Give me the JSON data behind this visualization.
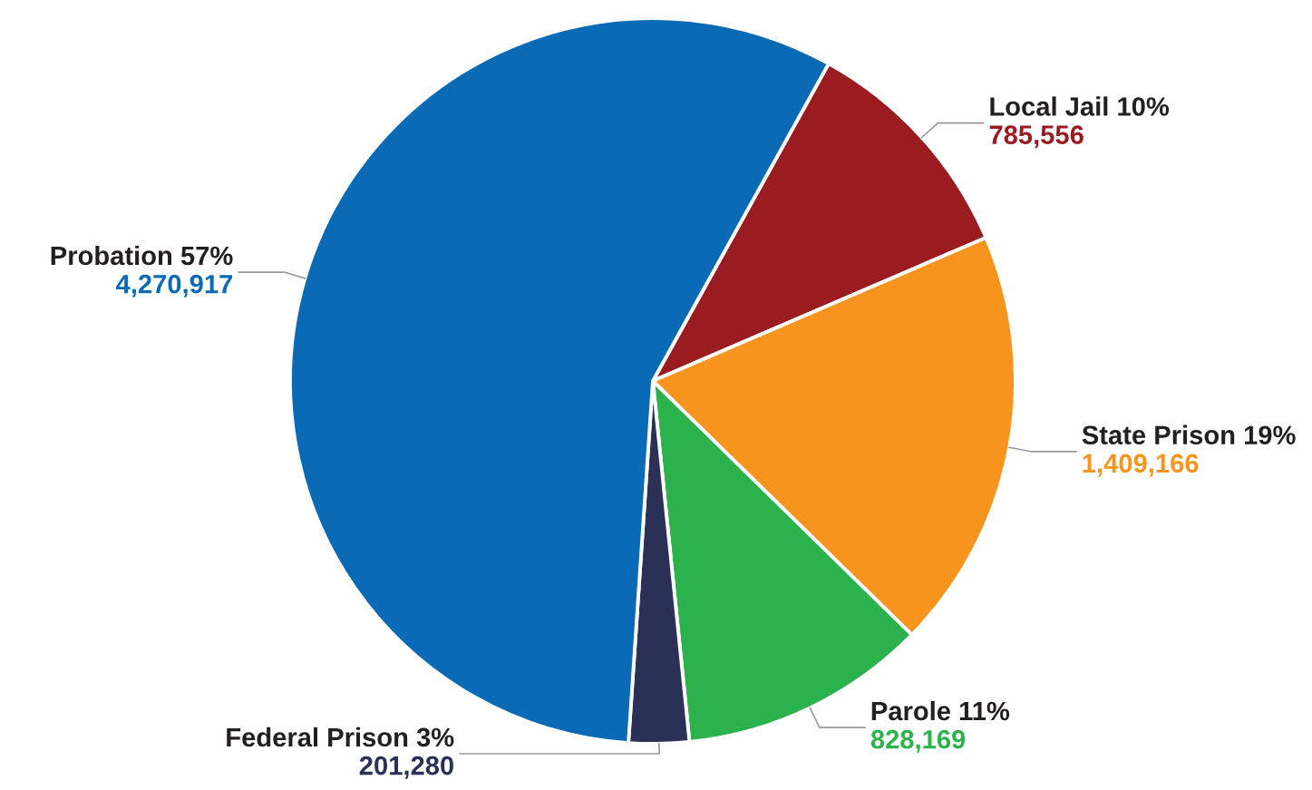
{
  "chart_data": {
    "type": "pie",
    "categories": [
      "Local Jail 10%",
      "State Prison 19%",
      "Parole 11%",
      "Federal Prison 3%",
      "Probation 57%"
    ],
    "values": [
      785556,
      1409166,
      828169,
      201280,
      4270917
    ],
    "value_labels": [
      "785,556",
      "1,409,166",
      "828,169",
      "201,280",
      "4,270,917"
    ],
    "colors": [
      "#9b1c20",
      "#f7941d",
      "#2bb24c",
      "#2a3056",
      "#0a6ab5"
    ]
  }
}
